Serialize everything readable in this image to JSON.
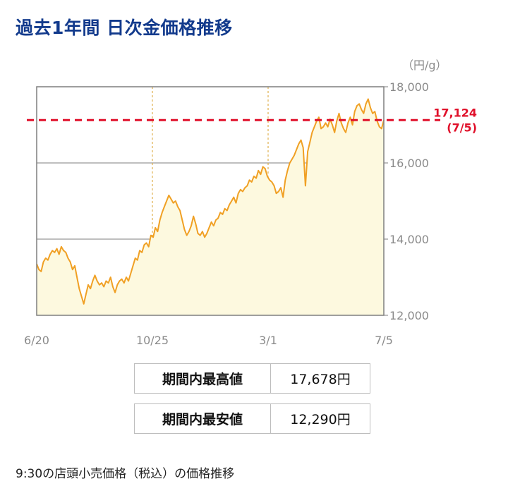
{
  "title": "過去1年間 日次金価格推移",
  "chart_data": {
    "type": "area",
    "unit_label": "（円/g）",
    "x_ticks": [
      "6/20",
      "10/25",
      "3/1",
      "7/5"
    ],
    "y_ticks": [
      "18,000",
      "16,000",
      "14,000",
      "12,000"
    ],
    "ylim": [
      12000,
      18000
    ],
    "grid": true,
    "line_color": "#f0a024",
    "fill_color": "#fdf9df",
    "reference": {
      "value": 17124,
      "label": "17,124",
      "date_label": "(7/5)",
      "color": "#e0102a"
    },
    "series": [
      {
        "values": [
          13350,
          13200,
          13150,
          13400,
          13500,
          13450,
          13600,
          13700,
          13650,
          13750,
          13600,
          13800,
          13700,
          13650,
          13500,
          13400,
          13200,
          13300,
          13000,
          12700,
          12500,
          12300,
          12550,
          12800,
          12700,
          12900,
          13050,
          12900,
          12800,
          12850,
          12750,
          12900,
          12850,
          13000,
          12750,
          12600,
          12800,
          12900,
          12950,
          12850,
          13000,
          12900,
          13100,
          13300,
          13500,
          13450,
          13700,
          13650,
          13850,
          13900,
          13800,
          14100,
          14050,
          14300,
          14200,
          14500,
          14700,
          14850,
          15000,
          15150,
          15050,
          14950,
          15000,
          14850,
          14750,
          14500,
          14250,
          14100,
          14200,
          14350,
          14600,
          14400,
          14150,
          14100,
          14200,
          14050,
          14150,
          14300,
          14450,
          14350,
          14500,
          14550,
          14700,
          14650,
          14800,
          14750,
          14900,
          15000,
          15100,
          14950,
          15200,
          15300,
          15250,
          15350,
          15400,
          15550,
          15500,
          15650,
          15600,
          15800,
          15700,
          15900,
          15850,
          15650,
          15550,
          15500,
          15400,
          15200,
          15250,
          15350,
          15100,
          15550,
          15800,
          16000,
          16100,
          16200,
          16350,
          16500,
          16600,
          16400,
          15400,
          16300,
          16550,
          16800,
          16950,
          17100,
          17200,
          16900,
          16950,
          17050,
          16950,
          17150,
          17000,
          16800,
          17100,
          17300,
          17050,
          16900,
          16800,
          17050,
          17200,
          17000,
          17350,
          17500,
          17550,
          17400,
          17300,
          17550,
          17678,
          17450,
          17300,
          17350,
          17100,
          16950,
          16900,
          17124
        ]
      }
    ]
  },
  "stats": {
    "high_label": "期間内最高値",
    "high_value": "17,678円",
    "low_label": "期間内最安値",
    "low_value": "12,290円"
  },
  "footnote": "9:30の店頭小売価格（税込）の価格推移"
}
